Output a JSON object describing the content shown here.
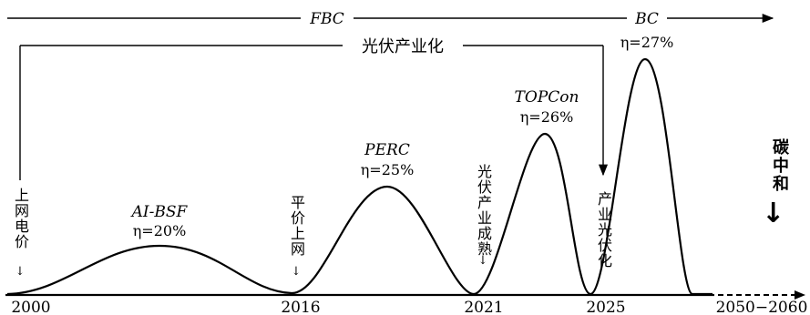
{
  "top_arrow": {
    "left_label": "FBC",
    "right_label": "BC"
  },
  "industrialization": {
    "label": "光伏产业化"
  },
  "peaks": [
    {
      "name": "AI-BSF",
      "efficiency": "η=20%"
    },
    {
      "name": "PERC",
      "efficiency": "η=25%"
    },
    {
      "name": "TOPCon",
      "efficiency": "η=26%"
    },
    {
      "name": "BC",
      "efficiency": "η=27%"
    }
  ],
  "milestones": [
    {
      "text": "上网电价"
    },
    {
      "text": "平价上网"
    },
    {
      "text": "光伏产业成熟"
    },
    {
      "text": "产业光伏化"
    }
  ],
  "goal": {
    "text": "碳中和",
    "arrow": "↓"
  },
  "timeline": {
    "ticks": [
      "2000",
      "2016",
      "2021",
      "2025",
      "2050−2060"
    ]
  }
}
